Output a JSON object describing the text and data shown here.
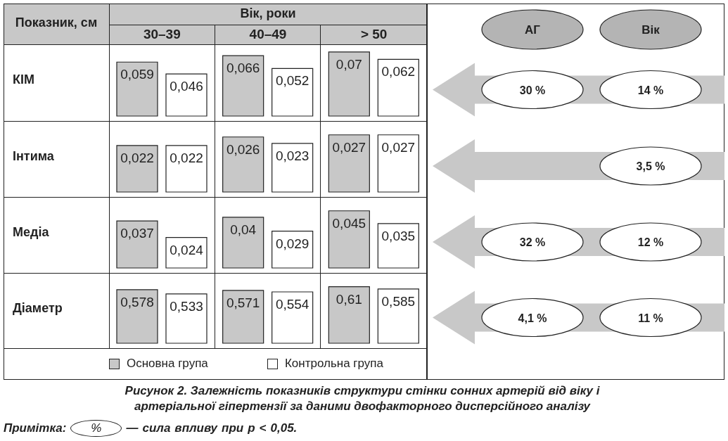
{
  "chart_data": [
    {
      "type": "bar",
      "title": "КІМ",
      "xlabel": "Вік, роки",
      "ylabel": "Показник, см",
      "categories": [
        "30–39",
        "40–49",
        "> 50"
      ],
      "tick_labels": "x",
      "series": [
        {
          "color": "#c8c8c8",
          "values": [
            0.059,
            0.066,
            0.07
          ],
          "value_labels": [
            "0,059",
            "0,066",
            "0,07"
          ]
        },
        {
          "color": "#ffffff",
          "values": [
            0.046,
            0.052,
            0.062
          ],
          "value_labels": [
            "0,046",
            "0,052",
            "0,062"
          ]
        }
      ]
    },
    {
      "type": "bar",
      "title": "Інтима",
      "categories": [
        null,
        null,
        null
      ],
      "series": [
        {
          "color": "#c8c8c8",
          "values": [
            0.022,
            0.026,
            0.027
          ],
          "value_labels": [
            "0,022",
            "0,026",
            "0,027"
          ]
        },
        {
          "color": "#ffffff",
          "values": [
            0.022,
            0.023,
            0.027
          ],
          "value_labels": [
            "0,022",
            "0,023",
            "0,027"
          ]
        }
      ]
    },
    {
      "type": "bar",
      "title": "Медіа",
      "categories": [
        null,
        null,
        null
      ],
      "series": [
        {
          "color": "#c8c8c8",
          "values": [
            0.037,
            0.04,
            0.045
          ],
          "value_labels": [
            "0,037",
            "0,04",
            "0,045"
          ]
        },
        {
          "color": "#ffffff",
          "values": [
            0.024,
            0.029,
            0.035
          ],
          "value_labels": [
            "0,024",
            "0,029",
            "0,035"
          ]
        }
      ]
    },
    {
      "type": "bar",
      "title": "Діаметр",
      "categories": [
        null,
        null,
        null
      ],
      "legend": "bottom",
      "series": [
        {
          "name": "Основна група",
          "color": "#c8c8c8",
          "values": [
            0.578,
            0.571,
            0.61
          ],
          "value_labels": [
            "0,578",
            "0,571",
            "0,61"
          ]
        },
        {
          "name": "Контрольна група",
          "color": "#ffffff",
          "values": [
            0.533,
            0.554,
            0.585
          ],
          "value_labels": [
            "0,533",
            "0,554",
            "0,585"
          ]
        }
      ]
    },
    {
      "type": "other",
      "categories": [
        "АГ",
        "Вік"
      ],
      "annotations": [
        "Рисунок 2.  Залежність показників структури стінки сонних артерій від віку і артеріальної гіпертензії за даними двофакторного дисперсійного аналізу",
        "Примітка: % — сила впливу при p < 0,05.",
        {
          "text": "30 %",
          "x": "АГ",
          "y": "КІМ"
        },
        {
          "text": "14 %",
          "x": "Вік",
          "y": "КІМ"
        },
        {
          "text": "3,5 %",
          "x": "Вік",
          "y": "Інтима"
        },
        {
          "text": "32 %",
          "x": "АГ",
          "y": "Медіа"
        },
        {
          "text": "12 %",
          "x": "Вік",
          "y": "Медіа"
        },
        {
          "text": "4,1 %",
          "x": "АГ",
          "y": "Діаметр"
        },
        {
          "text": "11 %",
          "x": "Вік",
          "y": "Діаметр"
        }
      ]
    }
  ]
}
